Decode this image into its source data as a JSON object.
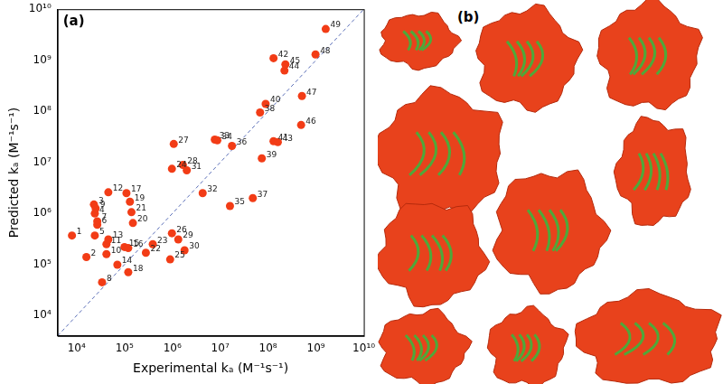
{
  "chart_data": {
    "type": "scatter",
    "panel_label": "(a)",
    "x_label": "Experimental kₐ (M⁻¹s⁻¹)",
    "y_label": "Predicted kₐ (M⁻¹s⁻¹)",
    "log": true,
    "grid": false,
    "tick_labels": true,
    "xlim": [
      4000,
      10000000000
    ],
    "ylim": [
      4000,
      10000000000
    ],
    "xticks": [
      {
        "value": 10000,
        "label": "10⁴"
      },
      {
        "value": 100000,
        "label": "10⁵"
      },
      {
        "value": 1000000,
        "label": "10⁶"
      },
      {
        "value": 10000000,
        "label": "10⁷"
      },
      {
        "value": 100000000,
        "label": "10⁸"
      },
      {
        "value": 1000000000,
        "label": "10⁹"
      },
      {
        "value": 10000000000,
        "label": "10¹⁰"
      }
    ],
    "yticks": [
      {
        "value": 10000,
        "label": "10⁴"
      },
      {
        "value": 100000,
        "label": "10⁵"
      },
      {
        "value": 1000000,
        "label": "10⁶"
      },
      {
        "value": 10000000,
        "label": "10⁷"
      },
      {
        "value": 100000000,
        "label": "10⁸"
      },
      {
        "value": 1000000000,
        "label": "10⁹"
      },
      {
        "value": 10000000000,
        "label": "10¹⁰"
      }
    ],
    "series": [
      {
        "type": "scatter",
        "color": "#f23c16",
        "marker": "circle",
        "point_labels": [
          1,
          2,
          3,
          4,
          5,
          6,
          7,
          8,
          9,
          10,
          11,
          12,
          13,
          14,
          15,
          16,
          17,
          18,
          19,
          20,
          21,
          22,
          23,
          24,
          25,
          26,
          27,
          28,
          29,
          30,
          31,
          32,
          33,
          34,
          35,
          36,
          37,
          38,
          39,
          40,
          41,
          42,
          43,
          44,
          45,
          46,
          47,
          48,
          49
        ],
        "x": [
          8000,
          16000,
          23000,
          24000,
          24000,
          27000,
          27000,
          34000,
          25000,
          42000,
          42000,
          46000,
          46000,
          71000,
          100000,
          120000,
          110000,
          120000,
          130000,
          150000,
          140000,
          280000,
          390000,
          980000,
          900000,
          980000,
          1070000,
          1660000,
          1330000,
          1800000,
          2000000,
          4300000,
          7700000,
          8700000,
          16000000,
          17600000,
          48000000,
          68000000,
          74000000,
          89000000,
          130000000,
          130000000,
          160000000,
          220000000,
          230000000,
          490000000,
          510000000,
          980000000,
          1600000000
        ],
        "values": [
          370000,
          140000,
          1500000,
          1000000,
          370000,
          600000,
          700000,
          45000,
          1250000,
          160000,
          250000,
          2600000,
          310000,
          99000,
          220000,
          210000,
          2500000,
          71000,
          1700000,
          650000,
          1060000,
          170000,
          250000,
          7500000,
          126000,
          410000,
          23000000,
          8900000,
          310000,
          190000,
          7000000,
          2500000,
          28000000,
          27000000,
          1400000,
          21000000,
          2000000,
          95000000,
          12000000,
          140000000,
          26000000,
          1100000000,
          25000000,
          630000000,
          830000000,
          54000000,
          200000000,
          1300000000,
          4100000000
        ]
      },
      {
        "type": "line",
        "color": "#5b6fb8",
        "line_style": "dashed",
        "x": [
          4000,
          10000000000
        ],
        "values": [
          4000,
          10000000000
        ]
      }
    ]
  },
  "panel_b": {
    "label": "(b)"
  }
}
